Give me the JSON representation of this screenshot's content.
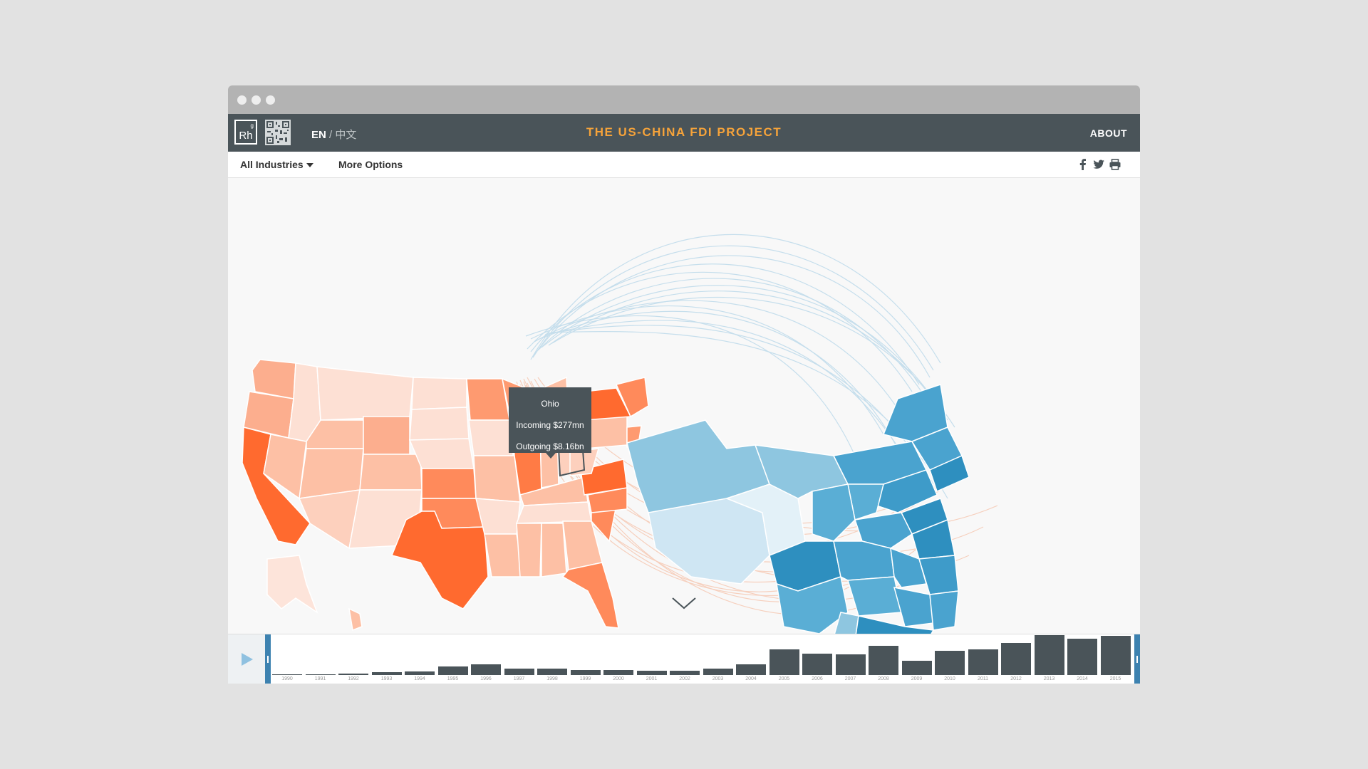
{
  "window": {
    "dots": [
      "dot",
      "dot",
      "dot"
    ]
  },
  "header": {
    "logo_text": "Rh",
    "logo_sup": "g",
    "lang_en": "EN",
    "lang_sep": "/",
    "lang_zh": "中文",
    "title": "THE US-CHINA FDI PROJECT",
    "about": "ABOUT"
  },
  "toolbar": {
    "industries": "All Industries",
    "more_options": "More Options",
    "share_icons": [
      "facebook-icon",
      "twitter-icon",
      "print-icon"
    ]
  },
  "tooltip": {
    "state": "Ohio",
    "incoming": "Incoming $277mn",
    "outgoing": "Outgoing $8.16bn"
  },
  "colors": {
    "us_accent": "#ff6a2f",
    "china_accent": "#2e8fbf",
    "title": "#f6a33a",
    "bar": "#4a5459"
  },
  "timeline": {
    "years": [
      "1990",
      "1991",
      "1992",
      "1993",
      "1994",
      "1995",
      "1996",
      "1997",
      "1998",
      "1999",
      "2000",
      "2001",
      "2002",
      "2003",
      "2004",
      "2005",
      "2006",
      "2007",
      "2008",
      "2009",
      "2010",
      "2011",
      "2012",
      "2013",
      "2014",
      "2015"
    ],
    "values": [
      1,
      1,
      2,
      3,
      4,
      10,
      12,
      7,
      7,
      6,
      6,
      5,
      5,
      7,
      12,
      29,
      24,
      23,
      33,
      16,
      27,
      29,
      36,
      45,
      41,
      44
    ]
  }
}
